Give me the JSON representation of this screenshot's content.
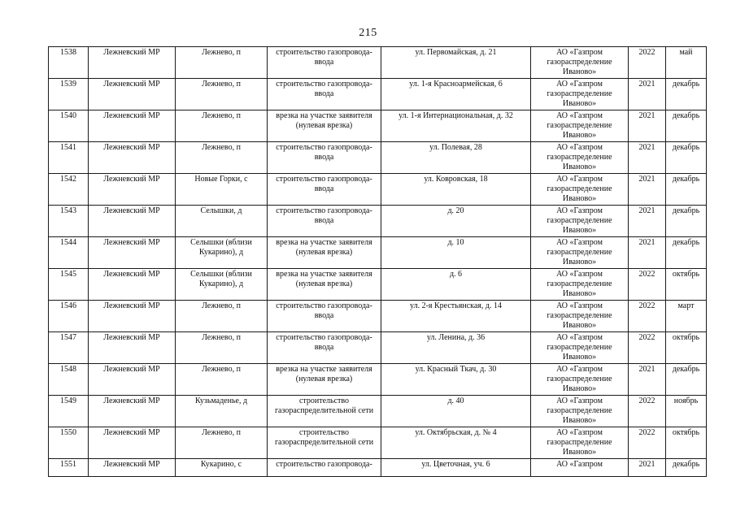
{
  "page": {
    "number": "215"
  },
  "table": {
    "columns": [
      {
        "key": "id"
      },
      {
        "key": "district"
      },
      {
        "key": "settlement"
      },
      {
        "key": "work"
      },
      {
        "key": "address"
      },
      {
        "key": "org"
      },
      {
        "key": "year"
      },
      {
        "key": "month"
      }
    ],
    "rows": [
      {
        "id": "1538",
        "district": "Лежневский МР",
        "settlement": "Лежнево, п",
        "work": "строительство газопровода-ввода",
        "address": "ул. Первомайская, д. 21",
        "org": "АО «Газпром газораспределение Иваново»",
        "year": "2022",
        "month": "май"
      },
      {
        "id": "1539",
        "district": "Лежневский МР",
        "settlement": "Лежнево, п",
        "work": "строительство газопровода-ввода",
        "address": "ул. 1-я Красноармейская, 6",
        "org": "АО «Газпром газораспределение Иваново»",
        "year": "2021",
        "month": "декабрь"
      },
      {
        "id": "1540",
        "district": "Лежневский МР",
        "settlement": "Лежнево, п",
        "work": "врезка на участке заявителя (нулевая врезка)",
        "address": "ул. 1-я Интернациональная, д. 32",
        "org": "АО «Газпром газораспределение Иваново»",
        "year": "2021",
        "month": "декабрь"
      },
      {
        "id": "1541",
        "district": "Лежневский МР",
        "settlement": "Лежнево, п",
        "work": "строительство газопровода-ввода",
        "address": "ул. Полевая, 28",
        "org": "АО «Газпром газораспределение Иваново»",
        "year": "2021",
        "month": "декабрь"
      },
      {
        "id": "1542",
        "district": "Лежневский МР",
        "settlement": "Новые Горки, с",
        "work": "строительство газопровода-ввода",
        "address": "ул. Ковровская, 18",
        "org": "АО «Газпром газораспределение Иваново»",
        "year": "2021",
        "month": "декабрь"
      },
      {
        "id": "1543",
        "district": "Лежневский МР",
        "settlement": "Селышки, д",
        "work": "строительство газопровода-ввода",
        "address": "д. 20",
        "org": "АО «Газпром газораспределение Иваново»",
        "year": "2021",
        "month": "декабрь"
      },
      {
        "id": "1544",
        "district": "Лежневский МР",
        "settlement": "Селышки (вблизи Кукарино), д",
        "work": "врезка на участке заявителя (нулевая врезка)",
        "address": "д. 10",
        "org": "АО «Газпром газораспределение Иваново»",
        "year": "2021",
        "month": "декабрь"
      },
      {
        "id": "1545",
        "district": "Лежневский МР",
        "settlement": "Селышки (вблизи Кукарино), д",
        "work": "врезка на участке заявителя (нулевая врезка)",
        "address": "д. 6",
        "org": "АО «Газпром газораспределение Иваново»",
        "year": "2022",
        "month": "октябрь"
      },
      {
        "id": "1546",
        "district": "Лежневский МР",
        "settlement": "Лежнево, п",
        "work": "строительство газопровода-ввода",
        "address": "ул. 2-я Крестьянская, д. 14",
        "org": "АО «Газпром газораспределение Иваново»",
        "year": "2022",
        "month": "март"
      },
      {
        "id": "1547",
        "district": "Лежневский МР",
        "settlement": "Лежнево, п",
        "work": "строительство газопровода-ввода",
        "address": "ул. Ленина, д. 36",
        "org": "АО «Газпром газораспределение Иваново»",
        "year": "2022",
        "month": "октябрь"
      },
      {
        "id": "1548",
        "district": "Лежневский МР",
        "settlement": "Лежнево, п",
        "work": "врезка на участке заявителя (нулевая врезка)",
        "address": "ул. Красный Ткач, д. 30",
        "org": "АО «Газпром газораспределение Иваново»",
        "year": "2021",
        "month": "декабрь"
      },
      {
        "id": "1549",
        "district": "Лежневский МР",
        "settlement": "Кузьмаденье, д",
        "work": "строительство газораспределительной сети",
        "address": "д. 40",
        "org": "АО «Газпром газораспределение Иваново»",
        "year": "2022",
        "month": "ноябрь"
      },
      {
        "id": "1550",
        "district": "Лежневский МР",
        "settlement": "Лежнево, п",
        "work": "строительство газораспределительной сети",
        "address": "ул. Октябрьская, д. № 4",
        "org": "АО «Газпром газораспределение Иваново»",
        "year": "2022",
        "month": "октябрь"
      },
      {
        "id": "1551",
        "district": "Лежневский МР",
        "settlement": "Кукарино, с",
        "work": "строительство газопровода-",
        "address": "ул. Цветочная, уч. 6",
        "org": "АО «Газпром",
        "year": "2021",
        "month": "декабрь"
      }
    ]
  }
}
